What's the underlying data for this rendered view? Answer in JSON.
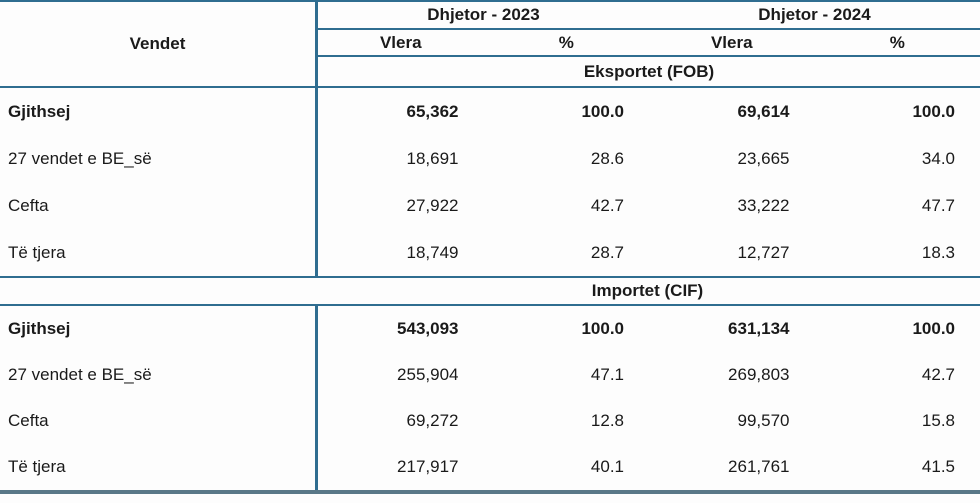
{
  "table": {
    "row_header": "Vendet",
    "col_groups": [
      "Dhjetor - 2023",
      "Dhjetor - 2024"
    ],
    "sub_headers": [
      "Vlera",
      "%",
      "Vlera",
      "%"
    ],
    "sections": [
      {
        "title": "Eksportet (FOB)",
        "rows": [
          {
            "label": "Gjithsej",
            "values": [
              "65,362",
              "100.0",
              "69,614",
              "100.0"
            ]
          },
          {
            "label": "27 vendet e BE_së",
            "values": [
              "18,691",
              "28.6",
              "23,665",
              "34.0"
            ]
          },
          {
            "label": "Cefta",
            "values": [
              "27,922",
              "42.7",
              "33,222",
              "47.7"
            ]
          },
          {
            "label": "Të tjera",
            "values": [
              "18,749",
              "28.7",
              "12,727",
              "18.3"
            ]
          }
        ]
      },
      {
        "title": "Importet (CIF)",
        "rows": [
          {
            "label": "Gjithsej",
            "values": [
              "543,093",
              "100.0",
              "631,134",
              "100.0"
            ]
          },
          {
            "label": "27 vendet e BE_së",
            "values": [
              "255,904",
              "47.1",
              "269,803",
              "42.7"
            ]
          },
          {
            "label": "Cefta",
            "values": [
              "69,272",
              "12.8",
              "99,570",
              "15.8"
            ]
          },
          {
            "label": "Të tjera",
            "values": [
              "217,917",
              "40.1",
              "261,761",
              "41.5"
            ]
          }
        ]
      }
    ]
  },
  "colors": {
    "border_thin": "#2f6d90",
    "border_thick": "#5a7888",
    "text": "#1a1a1a"
  }
}
